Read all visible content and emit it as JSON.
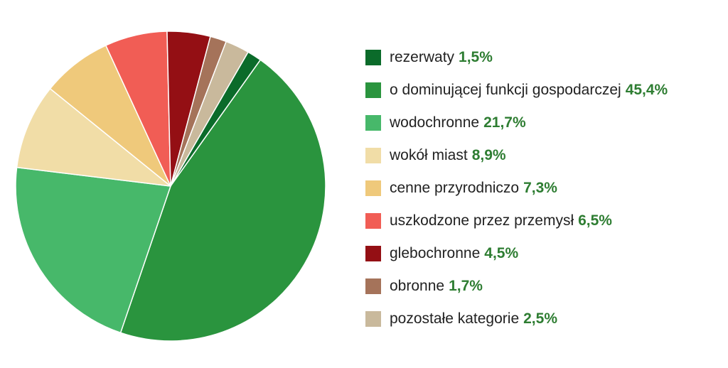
{
  "chart_data": {
    "type": "pie",
    "title": "",
    "legend_position": "right",
    "slices": [
      {
        "label": "rezerwaty",
        "value": 1.5,
        "value_label": "1,5%",
        "color": "#0b6b2a"
      },
      {
        "label": "o dominującej funkcji gospodarczej",
        "value": 45.4,
        "value_label": "45,4%",
        "color": "#2a943e"
      },
      {
        "label": "wodochronne",
        "value": 21.7,
        "value_label": "21,7%",
        "color": "#47b86a"
      },
      {
        "label": "wokół miast",
        "value": 8.9,
        "value_label": "8,9%",
        "color": "#f1dda7"
      },
      {
        "label": "cenne przyrodniczo",
        "value": 7.3,
        "value_label": "7,3%",
        "color": "#efc97b"
      },
      {
        "label": "uszkodzone przez przemysł",
        "value": 6.5,
        "value_label": "6,5%",
        "color": "#f15d55"
      },
      {
        "label": "glebochronne",
        "value": 4.5,
        "value_label": "4,5%",
        "color": "#940f14"
      },
      {
        "label": "obronne",
        "value": 1.7,
        "value_label": "1,7%",
        "color": "#a5735a"
      },
      {
        "label": "pozostałe kategorie",
        "value": 2.5,
        "value_label": "2,5%",
        "color": "#c9b99c"
      }
    ]
  }
}
